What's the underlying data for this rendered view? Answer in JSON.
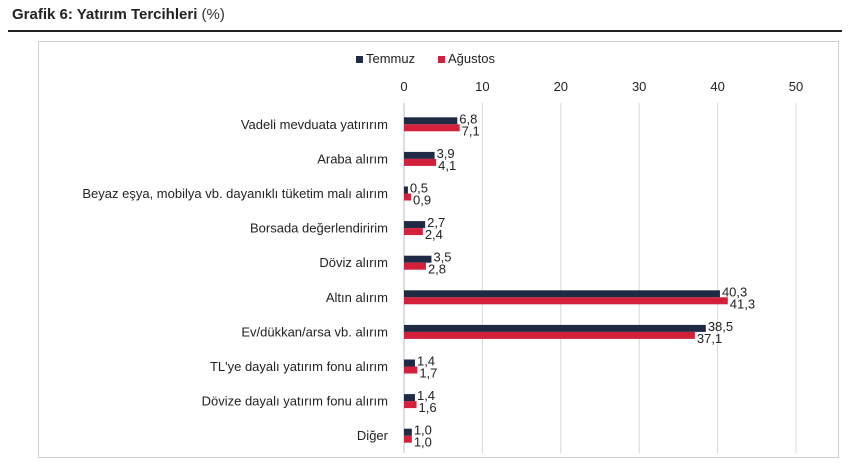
{
  "title": {
    "main": "Grafik 6: Yatırım Tercihleri",
    "unit": "(%)"
  },
  "chart_data": {
    "type": "bar",
    "orientation": "horizontal",
    "title": "Grafik 6: Yatırım Tercihleri (%)",
    "categories": [
      "Vadeli mevduata yatırırım",
      "Araba alırım",
      "Beyaz eşya, mobilya vb. dayanıklı tüketim malı alırım",
      "Borsada değerlendiririm",
      "Döviz alırım",
      "Altın alırım",
      "Ev/dükkan/arsa vb. alırım",
      "TL'ye dayalı yatırım fonu alırım",
      "Dövize dayalı yatırım fonu alırım",
      "Diğer"
    ],
    "series": [
      {
        "name": "Temmuz",
        "color": "#1f2a44",
        "values": [
          6.8,
          3.9,
          0.5,
          2.7,
          3.5,
          40.3,
          38.5,
          1.4,
          1.4,
          1.0
        ],
        "labels": [
          "6,8",
          "3,9",
          "0,5",
          "2,7",
          "3,5",
          "40,3",
          "38,5",
          "1,4",
          "1,4",
          "1,0"
        ]
      },
      {
        "name": "Ağustos",
        "color": "#d3203b",
        "values": [
          7.1,
          4.1,
          0.9,
          2.4,
          2.8,
          41.3,
          37.1,
          1.7,
          1.6,
          1.0
        ],
        "labels": [
          "7,1",
          "4,1",
          "0,9",
          "2,4",
          "2,8",
          "41,3",
          "37,1",
          "1,7",
          "1,6",
          "1,0"
        ]
      }
    ],
    "xlim": [
      0,
      50
    ],
    "xticks": [
      "0",
      "10",
      "20",
      "30",
      "40",
      "50"
    ],
    "xtick_values": [
      0,
      10,
      20,
      30,
      40,
      50
    ],
    "axis_position": "top",
    "grid": true,
    "legend_position": "top"
  }
}
